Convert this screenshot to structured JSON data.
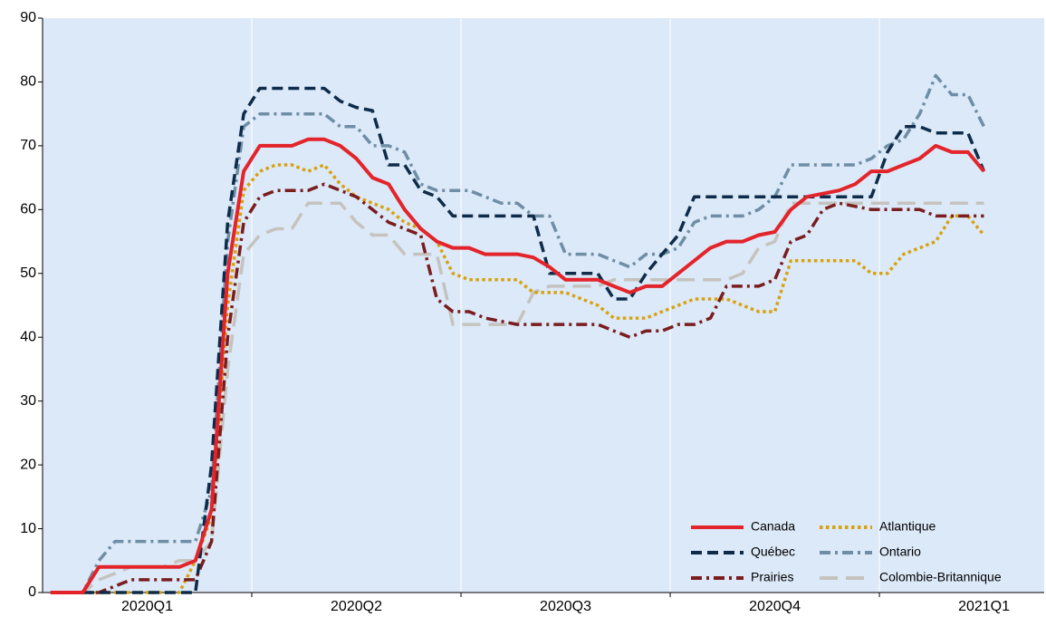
{
  "chart_data": {
    "type": "line",
    "categories": [
      null,
      null,
      null,
      null,
      null,
      null,
      "2020Q1",
      null,
      null,
      null,
      null,
      null,
      null,
      null,
      null,
      null,
      null,
      null,
      null,
      "2020Q2",
      null,
      null,
      null,
      null,
      null,
      null,
      null,
      null,
      null,
      null,
      null,
      null,
      "2020Q3",
      null,
      null,
      null,
      null,
      null,
      null,
      null,
      null,
      null,
      null,
      null,
      null,
      "2020Q4",
      null,
      null,
      null,
      null,
      null,
      null,
      null,
      null,
      null,
      null,
      null,
      null,
      "2021Q1"
    ],
    "series": [
      {
        "name": "Canada",
        "color": "#e3242b",
        "dash": "solid",
        "values": [
          0,
          0,
          0,
          4,
          4,
          4,
          4,
          4,
          4,
          5,
          13,
          50,
          66,
          70,
          70,
          70,
          71,
          71,
          70,
          68,
          65,
          64,
          60,
          57,
          55,
          54,
          54,
          53,
          53,
          53,
          52.5,
          51,
          49,
          49,
          49,
          48,
          47,
          48,
          48,
          50,
          52,
          54,
          55,
          55,
          56,
          56.5,
          60,
          62,
          62.5,
          63,
          64,
          66,
          66,
          67,
          68,
          70,
          69,
          69,
          66
        ]
      },
      {
        "name": "Québec",
        "color": "#0e2c4a",
        "dash": "dashed",
        "values": [
          0,
          0,
          0,
          0,
          0,
          0,
          0,
          0,
          0,
          0,
          20,
          58,
          75,
          79,
          79,
          79,
          79,
          79,
          77,
          76,
          75.5,
          67,
          67,
          63,
          62,
          59,
          59,
          59,
          59,
          59,
          59,
          50,
          50,
          50,
          50,
          46,
          46,
          50,
          53,
          56,
          62,
          62,
          62,
          62,
          62,
          62,
          62,
          62,
          62,
          62,
          62,
          62,
          69,
          73,
          73,
          72,
          72,
          72,
          66
        ]
      },
      {
        "name": "Prairies",
        "color": "#7a1d1f",
        "dash": "dashdot",
        "values": [
          0,
          0,
          0,
          0,
          1,
          2,
          2,
          2,
          2,
          2,
          8,
          40,
          58,
          62,
          63,
          63,
          63,
          64,
          63,
          62,
          60,
          58,
          57,
          56,
          46,
          44,
          44,
          43,
          42.5,
          42,
          42,
          42,
          42,
          42,
          42,
          41,
          40,
          41,
          41,
          42,
          42,
          43,
          48,
          48,
          48,
          49,
          55,
          56,
          60,
          61,
          60.5,
          60,
          60,
          60,
          60,
          59,
          59,
          59,
          59
        ]
      },
      {
        "name": "Atlantique",
        "color": "#d8a20f",
        "dash": "dotted",
        "values": [
          0,
          0,
          0,
          0,
          0,
          0,
          0,
          0,
          0,
          5,
          12,
          45,
          63,
          66,
          67,
          67,
          66,
          67,
          64,
          62,
          61,
          60,
          58,
          57,
          55,
          50,
          49,
          49,
          49,
          49,
          47,
          47,
          47,
          46,
          45,
          43,
          43,
          43,
          44,
          45,
          46,
          46,
          46,
          45,
          44,
          44,
          52,
          52,
          52,
          52,
          52,
          50,
          50,
          53,
          54,
          55,
          59,
          59,
          56
        ]
      },
      {
        "name": "Ontario",
        "color": "#6e8ea5",
        "dash": "dashdot",
        "values": [
          0,
          0,
          0,
          5,
          8,
          8,
          8,
          8,
          8,
          8,
          16,
          55,
          73,
          75,
          75,
          75,
          75,
          75,
          73,
          73,
          70,
          70,
          69,
          64,
          63,
          63,
          63,
          62,
          61,
          61,
          59,
          59,
          53,
          53,
          53,
          52,
          51,
          53,
          53,
          54,
          58,
          59,
          59,
          59,
          60,
          62,
          67,
          67,
          67,
          67,
          67,
          68,
          70,
          71,
          75,
          81,
          78,
          78,
          73
        ]
      },
      {
        "name": "Colombie-Britannique",
        "color": "#c5c3be",
        "dash": "longdash",
        "values": [
          0,
          0,
          0,
          2,
          3,
          4,
          4,
          4,
          5,
          5,
          8,
          35,
          53,
          56,
          57,
          57,
          61,
          61,
          61,
          58,
          56,
          56,
          53,
          53,
          53,
          42,
          42,
          42,
          42,
          42,
          47,
          48,
          48,
          48,
          48,
          49,
          49,
          49,
          49,
          49,
          49,
          49,
          49,
          50,
          54,
          55,
          61,
          61,
          61,
          61,
          61,
          61,
          61,
          61,
          61,
          61,
          61,
          61,
          61
        ]
      }
    ],
    "ylim": [
      0,
      90
    ],
    "yticks": [
      0,
      10,
      20,
      30,
      40,
      50,
      60,
      70,
      80,
      90
    ],
    "legend": "lower right"
  }
}
